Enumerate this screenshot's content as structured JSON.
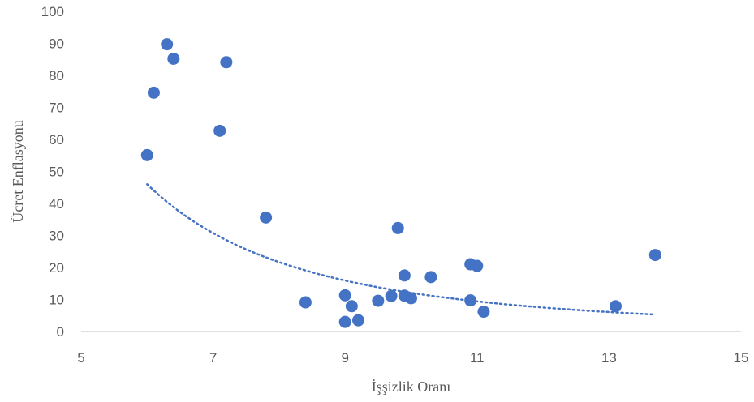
{
  "chart_data": {
    "type": "scatter",
    "xlabel": "İşşizlik Oranı",
    "ylabel": "Ücret Enflasyonu",
    "xlim": [
      5,
      15
    ],
    "ylim": [
      0,
      100
    ],
    "x_ticks": [
      5,
      7,
      9,
      11,
      13,
      15
    ],
    "y_ticks": [
      0,
      10,
      20,
      30,
      40,
      50,
      60,
      70,
      80,
      90,
      100
    ],
    "grid": false,
    "legend": "none",
    "marker_color": "#4472C4",
    "trendline": {
      "type": "power",
      "style": "dotted",
      "color": "#4472C4",
      "x_range": [
        6.0,
        13.7
      ],
      "y_range": [
        46.0,
        5.3
      ]
    },
    "points": [
      {
        "x": 6.0,
        "y": 55.1
      },
      {
        "x": 6.1,
        "y": 74.6
      },
      {
        "x": 6.3,
        "y": 89.7
      },
      {
        "x": 6.4,
        "y": 85.2
      },
      {
        "x": 7.1,
        "y": 62.7
      },
      {
        "x": 7.2,
        "y": 84.1
      },
      {
        "x": 7.8,
        "y": 35.6
      },
      {
        "x": 8.4,
        "y": 9.1
      },
      {
        "x": 9.0,
        "y": 11.3
      },
      {
        "x": 9.0,
        "y": 3.0
      },
      {
        "x": 9.1,
        "y": 7.9
      },
      {
        "x": 9.2,
        "y": 3.5
      },
      {
        "x": 9.5,
        "y": 9.6
      },
      {
        "x": 9.7,
        "y": 11.1
      },
      {
        "x": 9.8,
        "y": 32.3
      },
      {
        "x": 9.9,
        "y": 17.5
      },
      {
        "x": 9.9,
        "y": 11.2
      },
      {
        "x": 10.0,
        "y": 10.4
      },
      {
        "x": 10.3,
        "y": 17.0
      },
      {
        "x": 10.9,
        "y": 21.0
      },
      {
        "x": 11.0,
        "y": 20.5
      },
      {
        "x": 10.9,
        "y": 9.7
      },
      {
        "x": 11.1,
        "y": 6.2
      },
      {
        "x": 13.1,
        "y": 7.9
      },
      {
        "x": 13.7,
        "y": 23.9
      }
    ]
  }
}
